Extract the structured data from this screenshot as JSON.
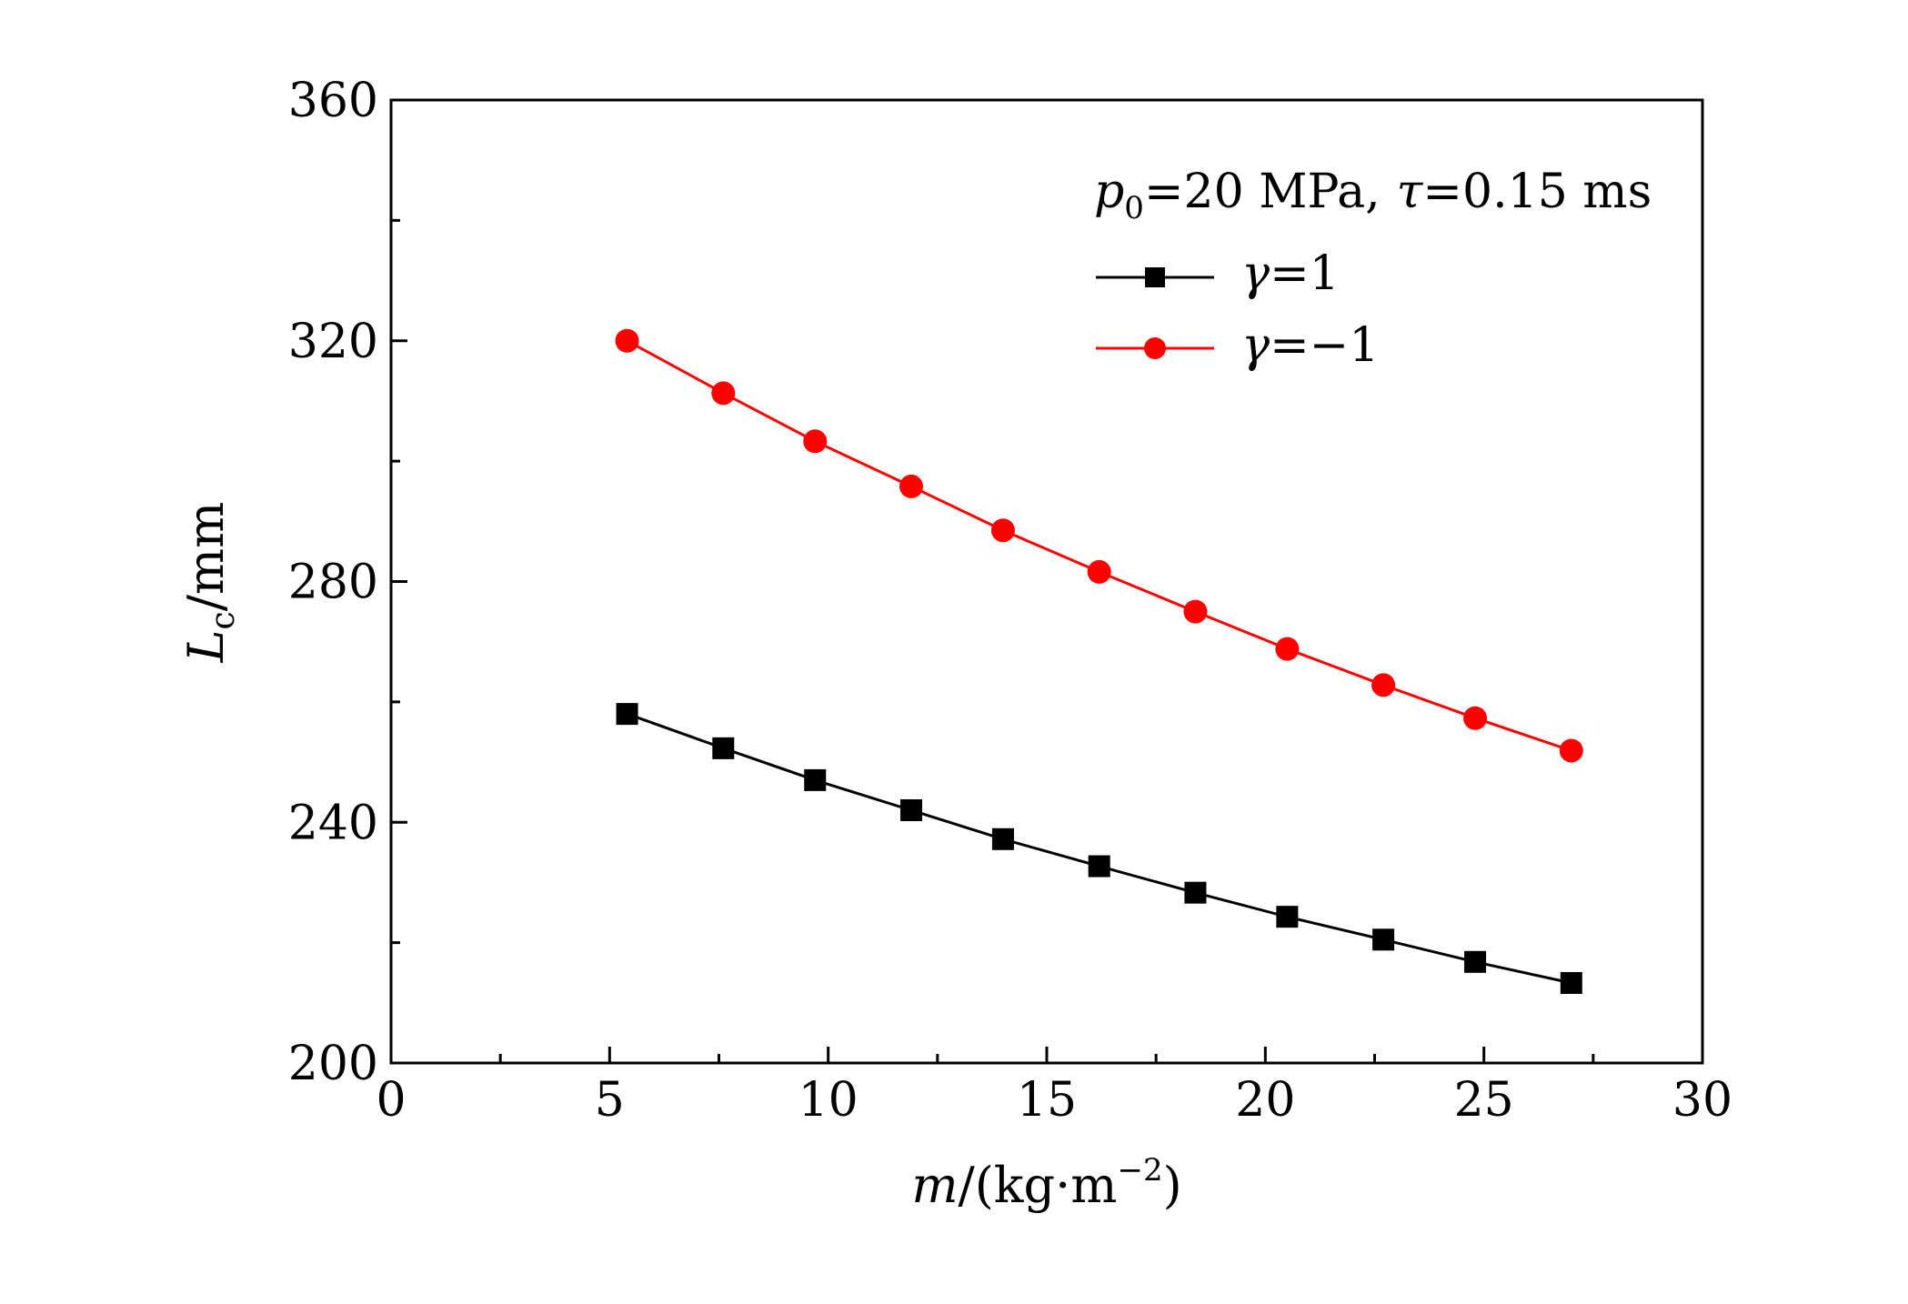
{
  "chart_data": {
    "type": "line",
    "title": "",
    "annotation": {
      "p_symbol": "p",
      "p_subscript": "0",
      "p_value": "=20 MPa,",
      "tau_symbol": "τ",
      "tau_value": "=0.15 ms"
    },
    "xlabel": {
      "var": "m",
      "unit": "/(kg·m",
      "exp": "−2",
      "close": ")"
    },
    "ylabel": {
      "var": "L",
      "subscript": "c",
      "unit": "/mm"
    },
    "xlim": [
      0,
      30
    ],
    "ylim": [
      200,
      360
    ],
    "x_ticks": [
      "0",
      "5",
      "10",
      "15",
      "20",
      "25",
      "30"
    ],
    "y_ticks": [
      "200",
      "240",
      "280",
      "320",
      "360"
    ],
    "grid": false,
    "legend_position": "top-right",
    "x": [
      5.4,
      7.6,
      9.7,
      11.9,
      14.0,
      16.2,
      18.4,
      20.5,
      22.7,
      24.8,
      27.0
    ],
    "series": [
      {
        "name_symbol": "γ",
        "name_value": "=1",
        "marker": "square",
        "color": "#000000",
        "values": [
          258.0,
          252.3,
          247.0,
          242.0,
          237.2,
          232.7,
          228.3,
          224.3,
          220.5,
          216.8,
          213.3
        ]
      },
      {
        "name_symbol": "γ",
        "name_value": "=−1",
        "marker": "circle",
        "color": "#ff0000",
        "values": [
          320.0,
          311.3,
          303.3,
          295.8,
          288.5,
          281.6,
          275.0,
          268.8,
          262.8,
          257.3,
          251.9
        ]
      }
    ]
  }
}
